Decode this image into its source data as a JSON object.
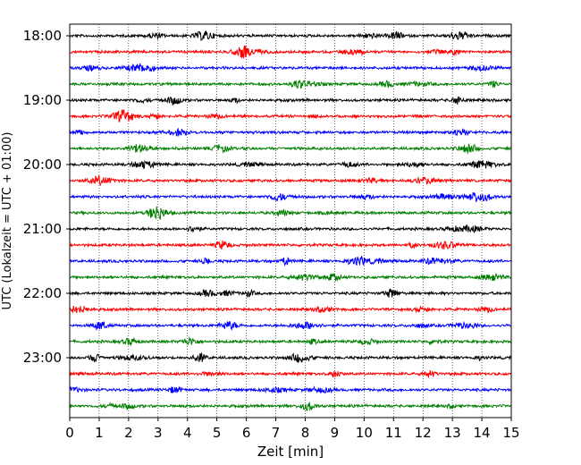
{
  "chart_data": {
    "type": "line",
    "title": "",
    "xlabel": "Zeit  [min]",
    "ylabel": "UTC (Lokalzeit = UTC + 01:00)",
    "xlim": [
      0,
      15
    ],
    "x_ticks": [
      "0",
      "1",
      "2",
      "3",
      "4",
      "5",
      "6",
      "7",
      "8",
      "9",
      "10",
      "11",
      "12",
      "13",
      "14",
      "15"
    ],
    "y_tick_labels": [
      "18:00",
      "19:00",
      "20:00",
      "21:00",
      "22:00",
      "23:00"
    ],
    "trace_interval_min": 15,
    "trace_start": "18:00",
    "trace_count": 24,
    "trace_colors": [
      "#000000",
      "#ff0000",
      "#0000ff",
      "#007f00"
    ],
    "grid": {
      "vertical": true,
      "style": "dotted"
    }
  }
}
